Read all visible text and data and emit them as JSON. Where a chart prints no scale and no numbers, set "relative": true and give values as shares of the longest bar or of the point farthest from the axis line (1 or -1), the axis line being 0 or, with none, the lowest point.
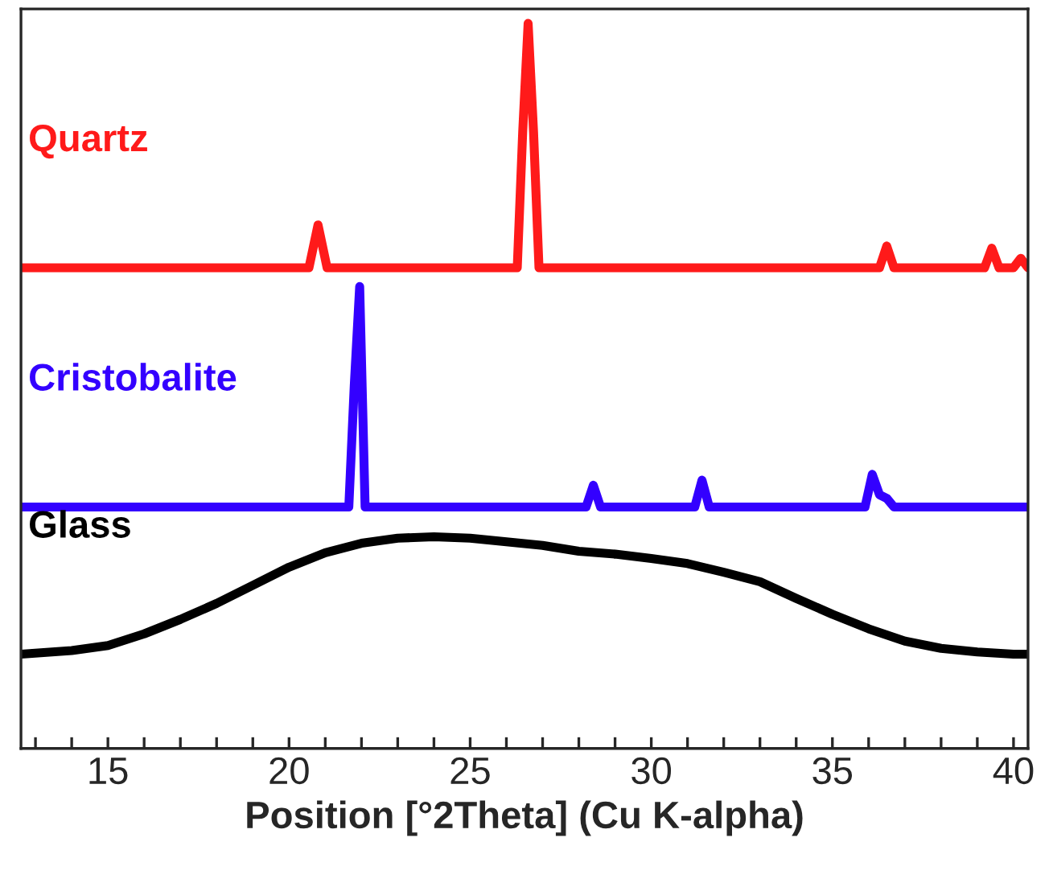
{
  "chart_data": {
    "type": "line",
    "relative": true,
    "xlabel": "Position [°2Theta] (Cu K-alpha)",
    "xlim": [
      12.6,
      40.4
    ],
    "xticks": [
      {
        "value": 13,
        "label": null
      },
      {
        "value": 14,
        "label": null
      },
      15,
      {
        "value": 16,
        "label": null
      },
      {
        "value": 17,
        "label": null
      },
      {
        "value": 18,
        "label": null
      },
      {
        "value": 19,
        "label": null
      },
      20,
      {
        "value": 21,
        "label": null
      },
      {
        "value": 22,
        "label": null
      },
      {
        "value": 23,
        "label": null
      },
      {
        "value": 24,
        "label": null
      },
      25,
      {
        "value": 26,
        "label": null
      },
      {
        "value": 27,
        "label": null
      },
      {
        "value": 28,
        "label": null
      },
      {
        "value": 29,
        "label": null
      },
      30,
      {
        "value": 31,
        "label": null
      },
      {
        "value": 32,
        "label": null
      },
      {
        "value": 33,
        "label": null
      },
      {
        "value": 34,
        "label": null
      },
      35,
      {
        "value": 36,
        "label": null
      },
      {
        "value": 37,
        "label": null
      },
      {
        "value": 38,
        "label": null
      },
      {
        "value": 39,
        "label": null
      },
      40
    ],
    "grid": false,
    "marker": "none",
    "line_style": "solid",
    "series": [
      {
        "name": "Quartz",
        "color": "#ff1a1a",
        "x": [
          12.6,
          20.55,
          20.8,
          21.05,
          26.3,
          26.45,
          26.6,
          26.75,
          26.9,
          36.3,
          36.5,
          36.7,
          39.2,
          39.4,
          39.6,
          40.0,
          40.2,
          40.4
        ],
        "values": [
          0.663,
          0.663,
          0.722,
          0.663,
          0.663,
          0.85,
          1.0,
          0.85,
          0.663,
          0.663,
          0.693,
          0.663,
          0.663,
          0.69,
          0.663,
          0.663,
          0.676,
          0.663
        ]
      },
      {
        "name": "Cristobalite",
        "color": "#3300ff",
        "x": [
          12.6,
          21.65,
          21.8,
          21.95,
          22.1,
          28.2,
          28.4,
          28.6,
          31.2,
          31.4,
          31.6,
          35.9,
          36.1,
          36.3,
          36.5,
          36.7,
          40.4
        ],
        "values": [
          0.333,
          0.333,
          0.5,
          0.637,
          0.333,
          0.333,
          0.363,
          0.333,
          0.333,
          0.37,
          0.333,
          0.333,
          0.378,
          0.35,
          0.345,
          0.333,
          0.333
        ]
      },
      {
        "name": "Glass",
        "color": "#000000",
        "x": [
          12.6,
          14,
          15,
          16,
          17,
          18,
          19,
          20,
          21,
          22,
          23,
          24,
          25,
          26,
          27,
          28,
          29,
          30,
          31,
          32,
          33,
          34,
          35,
          36,
          37,
          38,
          39,
          40,
          40.4
        ],
        "values": [
          0.13,
          0.135,
          0.142,
          0.158,
          0.178,
          0.2,
          0.225,
          0.25,
          0.27,
          0.283,
          0.29,
          0.292,
          0.29,
          0.285,
          0.28,
          0.272,
          0.268,
          0.262,
          0.255,
          0.243,
          0.23,
          0.207,
          0.185,
          0.165,
          0.148,
          0.138,
          0.133,
          0.13,
          0.13
        ]
      }
    ]
  }
}
